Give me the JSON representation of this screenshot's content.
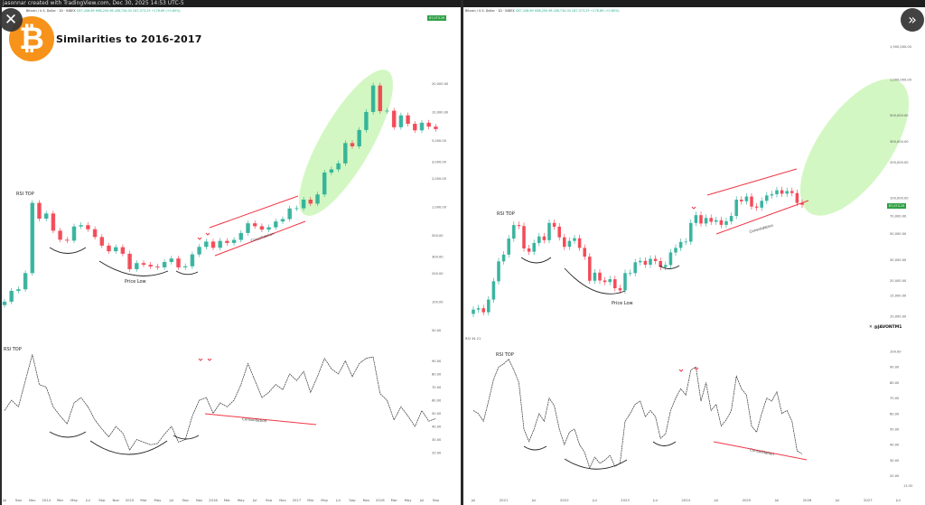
{
  "header": {
    "left_caption": "jasonnar created with TradingView.com, Dec 30, 2025 14:53 UTC-5",
    "left_legend_symbol": "Bitcoin / U.S. Dollar · 1D · INDEX",
    "left_legend_ohlc": "O87,208.89 H88,200.98 L86,734.00 C87,073.29 +176.89 (+0.80%)",
    "right_legend_symbol": "Bitcoin / U.S. Dollar · 1D · INDEX",
    "right_legend_ohlc": "O87,208.89 H88,200.98 L86,734.00 C87,073.29 +176.89 (+0.80%)"
  },
  "title": "Similarities to 2016-2017",
  "logo": {
    "glyph": "₿",
    "color": "#f7931a"
  },
  "overlay": {
    "close_icon": "close-icon",
    "close_glyph": "✕",
    "next_icon": "double-chevron-right-icon",
    "next_glyph": "»"
  },
  "watermark": "✕ @JAVONTM1",
  "time_label": "13:30",
  "price_tags": {
    "left": "87,073.29",
    "right": "87,073.29"
  },
  "rsi_label": "RSI 34.21",
  "colors": {
    "up": "#22ab94",
    "down": "#f23645",
    "highlight": "#c8f5b4",
    "channel": "#f23645",
    "arc": "#222222"
  },
  "annotations": {
    "rsi_top": "RSI TOP",
    "price_low": "Price Low",
    "consolidation": "Consolidation"
  },
  "chart_data": [
    {
      "type": "candlestick",
      "panel": "left-price",
      "scale": "log",
      "x_start": "2013-07",
      "x_step": "1 month",
      "close": [
        100,
        130,
        135,
        200,
        1100,
        750,
        850,
        560,
        450,
        440,
        620,
        640,
        580,
        480,
        390,
        340,
        375,
        320,
        220,
        255,
        245,
        235,
        230,
        262,
        285,
        230,
        236,
        315,
        378,
        430,
        370,
        437,
        416,
        448,
        530,
        670,
        624,
        575,
        608,
        700,
        742,
        960,
        965,
        1190,
        1080,
        1350,
        2300,
        2480,
        2870,
        4700,
        4340,
        6450,
        10000,
        19000,
        10200,
        10300,
        6900,
        9200,
        7500,
        6400,
        7700,
        7000,
        6600
      ],
      "y_ticks": [
        20000,
        10000,
        5000,
        3000,
        2000,
        1000,
        500,
        300,
        200,
        100,
        50
      ],
      "y_tick_labels": [
        "20,000.00",
        "10,000.00",
        "5,000.00",
        "3,000.00",
        "2,000.00",
        "1,000.00",
        "500.00",
        "300.00",
        "200.00",
        "100.00",
        "50.00"
      ],
      "x_labels": [
        "Jul",
        "Sep",
        "Nov",
        "2014",
        "Mar",
        "May",
        "Jul",
        "Sep",
        "Nov",
        "2015",
        "Mar",
        "May",
        "Jul",
        "Sep",
        "Nov",
        "2016",
        "Mar",
        "May",
        "Jul",
        "Sep",
        "Nov",
        "2017",
        "Mar",
        "May",
        "Jul",
        "Sep",
        "Nov",
        "2018",
        "Mar",
        "May",
        "Jul",
        "Sep"
      ]
    },
    {
      "type": "line",
      "panel": "left-rsi",
      "x_start": "2013-07",
      "x_step": "1 month",
      "values": [
        52,
        60,
        55,
        75,
        95,
        72,
        70,
        55,
        48,
        42,
        58,
        62,
        55,
        45,
        38,
        32,
        40,
        35,
        22,
        30,
        28,
        26,
        27,
        34,
        40,
        28,
        30,
        48,
        60,
        62,
        50,
        58,
        55,
        60,
        72,
        88,
        75,
        62,
        66,
        72,
        68,
        80,
        75,
        82,
        66,
        78,
        92,
        84,
        80,
        90,
        78,
        88,
        92,
        93,
        65,
        60,
        45,
        55,
        48,
        40,
        52,
        44,
        46
      ],
      "y_ticks": [
        90,
        80,
        70,
        60,
        50,
        40,
        30,
        20
      ],
      "y_tick_labels": [
        "90.00",
        "80.00",
        "70.00",
        "60.00",
        "50.00",
        "40.00",
        "30.00",
        "20.00"
      ]
    },
    {
      "type": "candlestick",
      "panel": "right-price",
      "scale": "log",
      "x_start": "2020-07",
      "x_step": "1 month",
      "close": [
        11350,
        11650,
        10780,
        13800,
        19700,
        29000,
        33100,
        45200,
        58800,
        57700,
        37300,
        35000,
        41500,
        47100,
        43800,
        61300,
        57000,
        46300,
        38500,
        43200,
        45500,
        37700,
        31800,
        19900,
        23300,
        20000,
        19400,
        20500,
        17200,
        16500,
        23100,
        23100,
        28500,
        29300,
        27200,
        30500,
        29200,
        26000,
        27000,
        34500,
        37700,
        42300,
        42600,
        61200,
        71300,
        60600,
        67500,
        62700,
        64600,
        59000,
        63300,
        70200,
        96400,
        93400,
        102400,
        84300,
        82500,
        94200,
        104600,
        107100,
        115800,
        108200,
        114000,
        109500,
        90400,
        87200
      ],
      "y_ticks": [
        1900000,
        1000000,
        500000,
        300000,
        200000,
        100000,
        70000,
        50000,
        30000,
        20000,
        15000,
        10000
      ],
      "y_tick_labels": [
        "1,900,000.00",
        "1,000,000.00",
        "500,000.00",
        "300,000.00",
        "200,000.00",
        "100,000.00",
        "70,000.00",
        "50,000.00",
        "30,000.00",
        "20,000.00",
        "15,000.00",
        "10,000.00"
      ],
      "x_labels": [
        "Jul",
        "2021",
        "Jul",
        "2022",
        "Jul",
        "2023",
        "Jul",
        "2024",
        "Jul",
        "2025",
        "Jul",
        "2026",
        "Jul",
        "2027",
        "Jul"
      ]
    },
    {
      "type": "line",
      "panel": "right-rsi",
      "x_start": "2020-07",
      "x_step": "1 month",
      "values": [
        62,
        60,
        55,
        68,
        82,
        90,
        92,
        95,
        88,
        80,
        50,
        42,
        50,
        60,
        55,
        70,
        65,
        50,
        40,
        48,
        50,
        40,
        35,
        25,
        32,
        28,
        30,
        33,
        26,
        28,
        55,
        60,
        66,
        68,
        58,
        62,
        58,
        44,
        47,
        62,
        70,
        76,
        72,
        88,
        90,
        68,
        80,
        62,
        66,
        52,
        56,
        62,
        84,
        76,
        72,
        52,
        48,
        60,
        70,
        68,
        74,
        60,
        62,
        55,
        36,
        34
      ],
      "y_ticks": [
        100,
        90,
        80,
        70,
        60,
        50,
        40,
        30,
        20
      ],
      "y_tick_labels": [
        "100.00",
        "90.00",
        "80.00",
        "70.00",
        "60.00",
        "50.00",
        "40.00",
        "30.00",
        "20.00"
      ]
    }
  ]
}
